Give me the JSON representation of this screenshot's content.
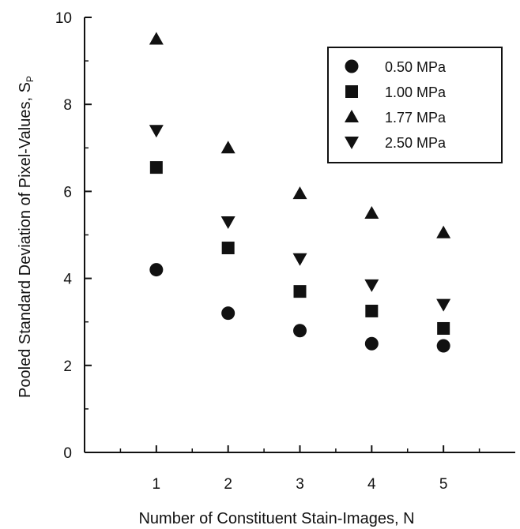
{
  "chart_data": {
    "type": "scatter",
    "title": "",
    "xlabel": "Number of Constituent Stain-Images, N",
    "ylabel": "Pooled Standard Deviation of Pixel-Values, S",
    "ylabel_subscript": "P",
    "xlim": [
      0,
      6
    ],
    "ylim": [
      0,
      10
    ],
    "x_ticks": [
      1,
      2,
      3,
      4,
      5
    ],
    "y_ticks": [
      0,
      2,
      4,
      6,
      8,
      10
    ],
    "x": [
      1,
      2,
      3,
      4,
      5
    ],
    "grid": false,
    "legend_position": "top-right",
    "series": [
      {
        "name": "0.50 MPa",
        "marker": "circle",
        "values": [
          4.2,
          3.2,
          2.8,
          2.5,
          2.45
        ]
      },
      {
        "name": "1.00 MPa",
        "marker": "square",
        "values": [
          6.55,
          4.7,
          3.7,
          3.25,
          2.85
        ]
      },
      {
        "name": "1.77 MPa",
        "marker": "triangle-up",
        "values": [
          9.5,
          7.0,
          5.95,
          5.5,
          5.05
        ]
      },
      {
        "name": "2.50 MPa",
        "marker": "triangle-down",
        "values": [
          7.4,
          5.3,
          4.45,
          3.85,
          3.4
        ]
      }
    ],
    "colors": {
      "marker": "#111111",
      "axis": "#111111",
      "background": "#ffffff"
    }
  }
}
